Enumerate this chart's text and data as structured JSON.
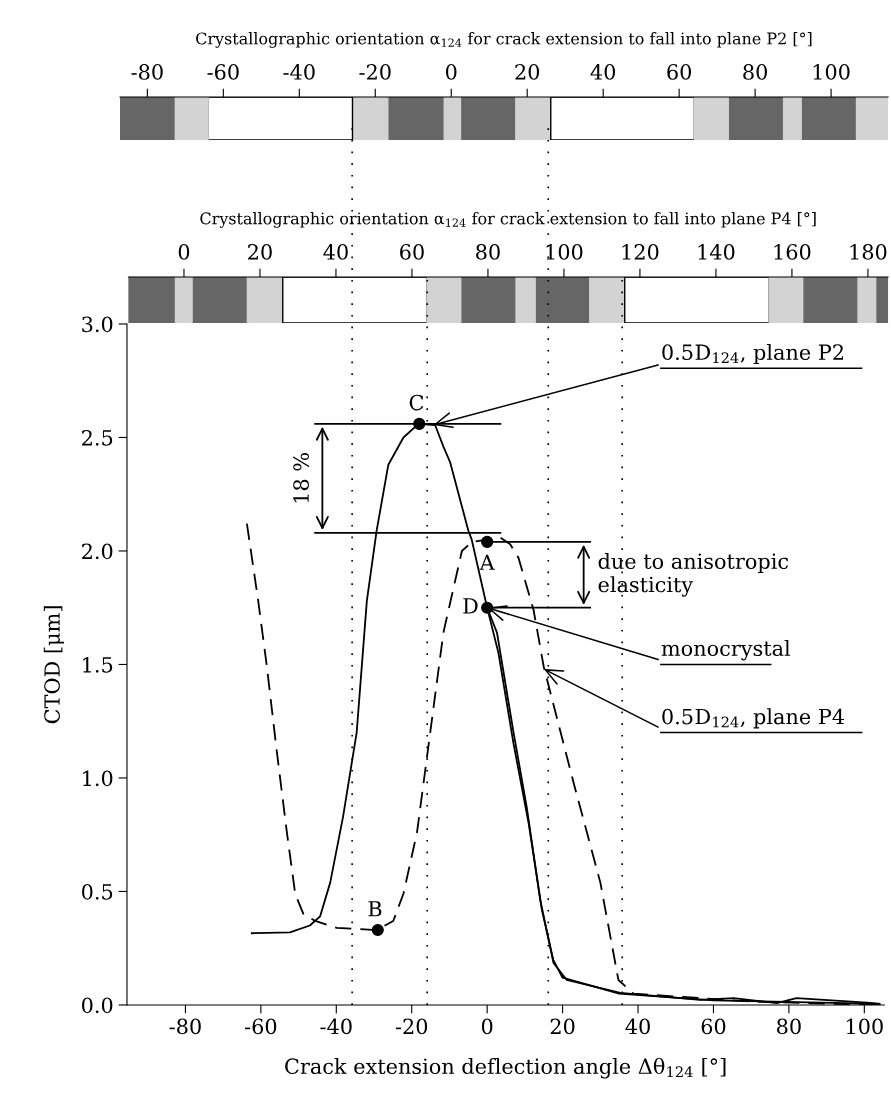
{
  "chart_data": [
    {
      "type": "bar",
      "orientation": "horizontal",
      "stacked": true,
      "categories": [
        null
      ],
      "xlabel": "Crystallographic orientation α$_{124}$ for crack extension to fall into plane P2 [°]",
      "xlim": [
        -87.2,
        115
      ],
      "xticks": [
        -80,
        -60,
        -40,
        -20,
        0,
        20,
        40,
        60,
        80,
        100
      ],
      "tick_labels": "x",
      "series": [
        {
          "color": "#d3d3d3",
          "values": [
            -2.2
          ]
        },
        {
          "color": "#666666",
          "values": [
            -14.5
          ]
        },
        {
          "color": "#d3d3d3",
          "values": [
            -9.3
          ]
        },
        {
          "color": "#ffffff",
          "values": [
            -38
          ]
        },
        {
          "color": "#d3d3d3",
          "values": [
            -9
          ]
        },
        {
          "color": "#666666",
          "values": [
            -14.2
          ]
        },
        {
          "color": "#d3d3d3",
          "values": [
            2.8
          ]
        },
        {
          "color": "#666666",
          "values": [
            14.2
          ]
        },
        {
          "color": "#d3d3d3",
          "values": [
            9.2
          ]
        },
        {
          "color": "#ffffff",
          "values": [
            37.8
          ]
        },
        {
          "color": "#d3d3d3",
          "values": [
            9.3
          ]
        },
        {
          "color": "#666666",
          "values": [
            14.2
          ]
        },
        {
          "color": "#d3d3d3",
          "values": [
            5
          ]
        },
        {
          "color": "#666666",
          "values": [
            14.2
          ]
        },
        {
          "color": "#d3d3d3",
          "values": [
            8.3
          ]
        }
      ]
    },
    {
      "type": "bar",
      "orientation": "horizontal",
      "stacked": true,
      "categories": [
        null
      ],
      "xlabel": "Crystallographic orientation α$_{124}$ for crack extension to fall into plane P4 [°]",
      "xlim": [
        -14.6,
        185.3
      ],
      "xticks": [
        0,
        20,
        40,
        60,
        80,
        100,
        120,
        140,
        160,
        180
      ],
      "tick_labels": "x",
      "series": [
        {
          "color": "#d3d3d3",
          "values": [
            -2.6
          ]
        },
        {
          "color": "#666666",
          "values": [
            -12
          ]
        },
        {
          "color": "#d3d3d3",
          "values": [
            2.5
          ]
        },
        {
          "color": "#666666",
          "values": [
            14.2
          ]
        },
        {
          "color": "#d3d3d3",
          "values": [
            9.3
          ]
        },
        {
          "color": "#ffffff",
          "values": [
            38
          ]
        },
        {
          "color": "#d3d3d3",
          "values": [
            9.2
          ]
        },
        {
          "color": "#666666",
          "values": [
            14.2
          ]
        },
        {
          "color": "#d3d3d3",
          "values": [
            5.4
          ]
        },
        {
          "color": "#666666",
          "values": [
            14
          ]
        },
        {
          "color": "#d3d3d3",
          "values": [
            9.2
          ]
        },
        {
          "color": "#ffffff",
          "values": [
            38
          ]
        },
        {
          "color": "#d3d3d3",
          "values": [
            9.2
          ]
        },
        {
          "color": "#666666",
          "values": [
            14.2
          ]
        },
        {
          "color": "#d3d3d3",
          "values": [
            5
          ]
        },
        {
          "color": "#666666",
          "values": [
            2.9
          ]
        }
      ]
    },
    {
      "type": "line",
      "xlabel": "Crack extension deflection angle Δθ$_{124}$ [°]",
      "ylabel": "CTOD [μm]",
      "xlim": [
        -95.5,
        105.3
      ],
      "xticks": [
        -80,
        -60,
        -40,
        -20,
        0,
        20,
        40,
        60,
        80,
        100
      ],
      "ylim": [
        0,
        3
      ],
      "yticks": [
        {
          "value": 0,
          "label": "0.0"
        },
        {
          "value": 0.5,
          "label": "0.5"
        },
        {
          "value": 1,
          "label": "1.0"
        },
        {
          "value": 1.5,
          "label": "1.5"
        },
        {
          "value": 2,
          "label": "2.0"
        },
        {
          "value": 2.5,
          "label": "2.5"
        },
        {
          "value": 3,
          "label": "3.0"
        }
      ],
      "grid": false,
      "legend": false,
      "series": [
        {
          "color": "#000000",
          "line_style": "solid",
          "x": [
            -62.4,
            -52.3,
            -47,
            -44.3,
            -41.6,
            -38.2,
            -34.6,
            -31.9,
            -29.3,
            -26.2,
            -22.2,
            -18.2,
            -13.8,
            -11.6,
            -9.8,
            -5,
            -4.1,
            0,
            2.6,
            7,
            10.5,
            14.1,
            17.6,
            21.1,
            35.3,
            56.5,
            65.3,
            76.8,
            82,
            100.7,
            104
          ],
          "values": [
            0.316,
            0.32,
            0.35,
            0.39,
            0.54,
            0.83,
            1.2,
            1.78,
            2.09,
            2.38,
            2.5,
            2.56,
            2.555,
            2.46,
            2.39,
            2.09,
            2.05,
            1.75,
            1.64,
            1.2,
            0.87,
            0.46,
            0.185,
            0.11,
            0.053,
            0.022,
            0.03,
            0.008,
            0.03,
            0.01,
            0.005
          ]
        },
        {
          "color": "#000000",
          "line_style": "solid",
          "x": [
            0,
            3,
            7,
            11,
            14.5,
            17.5,
            20,
            35,
            60,
            104
          ],
          "values": [
            1.75,
            1.55,
            1.15,
            0.8,
            0.42,
            0.2,
            0.12,
            0.05,
            0.02,
            0.005
          ]
        },
        {
          "color": "#000000",
          "line_style": "dashed",
          "x": [
            -63.7,
            -60.7,
            -58.4,
            -55.8,
            -53.1,
            -50.9,
            -48.7,
            -45.6,
            -39.9,
            -29.3,
            -24.9,
            -22.2,
            -18.6,
            -15.1,
            -11.6,
            -6.7,
            -4,
            0,
            3.4,
            6.1,
            8.3,
            12.3,
            15,
            22.9,
            30,
            34.8,
            38.8,
            70,
            104
          ],
          "values": [
            2.12,
            1.78,
            1.49,
            1.12,
            0.76,
            0.49,
            0.4,
            0.37,
            0.34,
            0.33,
            0.37,
            0.49,
            0.76,
            1.2,
            1.64,
            2.0,
            2.04,
            2.05,
            2.06,
            2.03,
            1.97,
            1.74,
            1.49,
            0.98,
            0.54,
            0.11,
            0.05,
            0.015,
            0.0
          ]
        },
        {
          "color": "#000000",
          "line_style": "solid",
          "x": [
            -45.6,
            3.5
          ],
          "values": [
            2.56,
            2.56
          ]
        },
        {
          "color": "#000000",
          "line_style": "solid",
          "x": [
            -45.6,
            3.5
          ],
          "values": [
            2.08,
            2.08
          ]
        },
        {
          "color": "#000000",
          "line_style": "solid",
          "x": [
            0,
            27.3
          ],
          "values": [
            2.04,
            2.04
          ]
        },
        {
          "color": "#000000",
          "line_style": "solid",
          "x": [
            0,
            27.3
          ],
          "values": [
            1.75,
            1.75
          ]
        },
        {
          "type": "scatter",
          "color": "#000000",
          "marker": "circle",
          "x": [
            0,
            -29,
            -18,
            0
          ],
          "values": [
            2.04,
            0.33,
            2.56,
            1.75
          ]
        }
      ],
      "ref_lines": [
        {
          "axis": "x",
          "value": -35.8,
          "color": "#000000",
          "line_style": "dotted"
        },
        {
          "axis": "x",
          "value": -15.9,
          "color": "#000000",
          "line_style": "dotted"
        },
        {
          "axis": "x",
          "value": 16.2,
          "color": "#000000",
          "line_style": "dotted"
        },
        {
          "axis": "x",
          "value": 35.8,
          "color": "#000000",
          "line_style": "dotted"
        }
      ],
      "annotations": [
        "18 %",
        "due to anisotropic\nelasticity",
        {
          "text": "0.5D$_{124}$, plane P2",
          "x": -14.3,
          "y": 2.555
        },
        {
          "text": "monocrystal",
          "x": 0,
          "y": 1.75
        },
        {
          "text": "0.5D$_{124}$, plane P4",
          "x": 15,
          "y": 1.48
        },
        {
          "text": "A",
          "x": 0,
          "y": 2.04
        },
        {
          "text": "B",
          "x": -29,
          "y": 0.33
        },
        {
          "text": "C",
          "x": -18,
          "y": 2.56
        },
        {
          "text": "D",
          "x": 0,
          "y": 1.75
        }
      ]
    }
  ]
}
